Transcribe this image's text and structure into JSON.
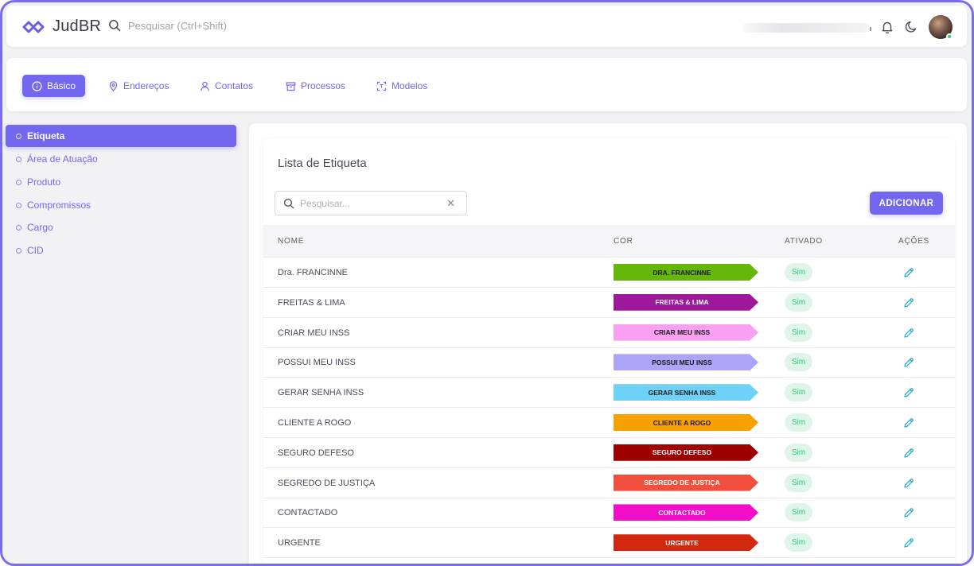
{
  "app": {
    "name": "JudBR"
  },
  "search_top": {
    "placeholder": "Pesquisar (Ctrl+Shift)"
  },
  "tabs": [
    {
      "label": "Básico",
      "icon": "info-icon",
      "active": true
    },
    {
      "label": "Endereços",
      "icon": "map-pin-icon",
      "active": false
    },
    {
      "label": "Contatos",
      "icon": "user-icon",
      "active": false
    },
    {
      "label": "Processos",
      "icon": "archive-icon",
      "active": false
    },
    {
      "label": "Modelos",
      "icon": "scan-icon",
      "active": false
    }
  ],
  "sidebar": {
    "items": [
      {
        "label": "Etiqueta",
        "active": true
      },
      {
        "label": "Área de Atuação",
        "active": false
      },
      {
        "label": "Produto",
        "active": false
      },
      {
        "label": "Compromissos",
        "active": false
      },
      {
        "label": "Cargo",
        "active": false
      },
      {
        "label": "CID",
        "active": false
      }
    ]
  },
  "list": {
    "title": "Lista de Etiqueta",
    "search_placeholder": "Pesquisar...",
    "add_label": "ADICIONAR",
    "columns": {
      "nome": "NOME",
      "cor": "COR",
      "ativado": "ATIVADO",
      "acoes": "AÇÕES"
    },
    "rows": [
      {
        "nome": "Dra. FRANCINNE",
        "tag": "DRA. FRANCINNE",
        "color": "#65b80a",
        "text_color": "#1a1a1a",
        "ativado": "Sim"
      },
      {
        "nome": "FREITAS & LIMA",
        "tag": "FREITAS & LIMA",
        "color": "#a0189a",
        "text_color": "#ffffff",
        "ativado": "Sim"
      },
      {
        "nome": "CRIAR MEU INSS",
        "tag": "CRIAR MEU INSS",
        "color": "#f9a0f0",
        "text_color": "#1a1a1a",
        "ativado": "Sim"
      },
      {
        "nome": "POSSUI MEU INSS",
        "tag": "POSSUI MEU INSS",
        "color": "#aca4f7",
        "text_color": "#1a1a1a",
        "ativado": "Sim"
      },
      {
        "nome": "GERAR SENHA INSS",
        "tag": "GERAR SENHA INSS",
        "color": "#6ed1f7",
        "text_color": "#1a1a1a",
        "ativado": "Sim"
      },
      {
        "nome": "CLIENTE A ROGO",
        "tag": "CLIENTE A ROGO",
        "color": "#f8a000",
        "text_color": "#1a1a1a",
        "ativado": "Sim"
      },
      {
        "nome": "SEGURO DEFESO",
        "tag": "SEGURO DEFESO",
        "color": "#9e0000",
        "text_color": "#ffffff",
        "ativado": "Sim"
      },
      {
        "nome": "SEGREDO DE JUSTIÇA",
        "tag": "SEGREDO DE JUSTIÇA",
        "color": "#f2503c",
        "text_color": "#ffffff",
        "ativado": "Sim"
      },
      {
        "nome": "CONTACTADO",
        "tag": "CONTACTADO",
        "color": "#f20ec8",
        "text_color": "#ffffff",
        "ativado": "Sim"
      },
      {
        "nome": "URGENTE",
        "tag": "URGENTE",
        "color": "#d3270f",
        "text_color": "#ffffff",
        "ativado": "Sim"
      }
    ]
  },
  "colors": {
    "accent": "#7367f0",
    "success": "#2ecc71",
    "edit_icon": "#1ca8c9"
  }
}
